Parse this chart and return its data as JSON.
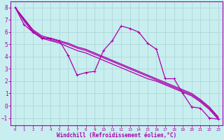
{
  "xlabel": "Windchill (Refroidissement éolien,°C)",
  "bg_color": "#c8eef0",
  "grid_color": "#b0d8d8",
  "line_color": "#aa00aa",
  "xlim": [
    -0.5,
    23.5
  ],
  "ylim": [
    -1.6,
    8.5
  ],
  "xticks": [
    0,
    1,
    2,
    3,
    4,
    5,
    6,
    7,
    8,
    9,
    10,
    11,
    12,
    13,
    14,
    15,
    16,
    17,
    18,
    19,
    20,
    21,
    22,
    23
  ],
  "yticks": [
    -1,
    0,
    1,
    2,
    3,
    4,
    5,
    6,
    7,
    8
  ],
  "zigzag_x": [
    0,
    1,
    2,
    3,
    4,
    5,
    6,
    7,
    8,
    9,
    10,
    11,
    12,
    13,
    14,
    15,
    16,
    17,
    18,
    19,
    20,
    21,
    22,
    23
  ],
  "zigzag_y": [
    8.0,
    6.6,
    6.0,
    5.5,
    5.5,
    5.3,
    4.1,
    2.5,
    2.7,
    2.8,
    4.5,
    5.3,
    6.5,
    6.3,
    6.0,
    5.1,
    4.6,
    2.2,
    2.2,
    1.0,
    -0.1,
    -0.2,
    -1.0,
    -1.1
  ],
  "line2_x": [
    0,
    1,
    2,
    3,
    4,
    5,
    6,
    7,
    8,
    9,
    10,
    11,
    12,
    13,
    14,
    15,
    16,
    17,
    18,
    19,
    20,
    21,
    22,
    23
  ],
  "line2_y": [
    8.0,
    6.9,
    6.0,
    5.5,
    5.3,
    5.1,
    4.8,
    4.5,
    4.3,
    4.0,
    3.7,
    3.4,
    3.1,
    2.8,
    2.5,
    2.2,
    2.0,
    1.7,
    1.4,
    1.1,
    0.8,
    0.3,
    -0.3,
    -1.1
  ],
  "line3_x": [
    0,
    1,
    2,
    3,
    4,
    5,
    6,
    7,
    8,
    9,
    10,
    11,
    12,
    13,
    14,
    15,
    16,
    17,
    18,
    19,
    20,
    21,
    22,
    23
  ],
  "line3_y": [
    8.0,
    7.0,
    6.1,
    5.6,
    5.4,
    5.2,
    5.0,
    4.7,
    4.5,
    4.2,
    3.9,
    3.6,
    3.3,
    3.0,
    2.7,
    2.4,
    2.1,
    1.8,
    1.5,
    1.2,
    0.9,
    0.4,
    -0.2,
    -1.0
  ],
  "line4_x": [
    0,
    1,
    2,
    3,
    4,
    5,
    6,
    7,
    8,
    9,
    10,
    11,
    12,
    13,
    14,
    15,
    16,
    17,
    18,
    19,
    20,
    21,
    22,
    23
  ],
  "line4_y": [
    8.0,
    7.1,
    6.2,
    5.7,
    5.5,
    5.3,
    5.1,
    4.8,
    4.6,
    4.3,
    4.0,
    3.7,
    3.4,
    3.1,
    2.8,
    2.5,
    2.2,
    1.9,
    1.6,
    1.3,
    1.0,
    0.5,
    -0.1,
    -0.9
  ]
}
